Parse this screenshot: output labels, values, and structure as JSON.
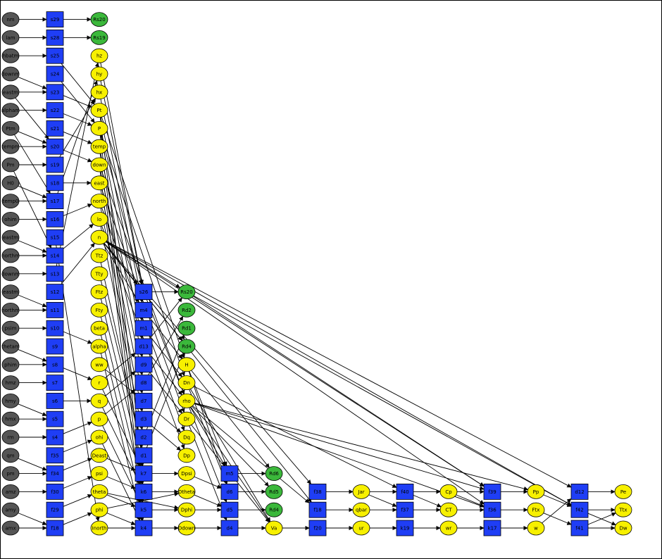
{
  "colors": {
    "input": "#555555",
    "state": "#1f3ef5",
    "green": "#3bb83b",
    "yellow": "#f7f000",
    "edge": "#000000"
  },
  "columns": [
    {
      "kind": "input",
      "labels": [
        "nm",
        "lam",
        "hbatm",
        "downm",
        "eastm",
        "alpham",
        "Ptm",
        "tempm",
        "Pm",
        "H0",
        "temp0",
        "ohim",
        "eastm",
        "northm",
        "downm",
        "eastm",
        "northm",
        "psim",
        "thetam",
        "phim",
        "hmz",
        "hmy",
        "hmx",
        "rm",
        "qm",
        "pm",
        "amz",
        "amy",
        "amx"
      ]
    },
    {
      "kind": "state",
      "labels": [
        "s29",
        "s28",
        "s25",
        "s24",
        "s23",
        "s22",
        "s21",
        "s20",
        "s19",
        "s18",
        "s17",
        "s16",
        "s15",
        "s14",
        "s13",
        "s12",
        "s11",
        "s10",
        "s9",
        "s8",
        "s7",
        "s6",
        "s5",
        "s4",
        "f35",
        "f34",
        "f30",
        "f29",
        "f18"
      ]
    },
    {
      "kind": "mixed",
      "labels": [
        "Rs20",
        "Rs19",
        "hz",
        "hy",
        "hx",
        "Pt",
        "P",
        "temp",
        "down",
        "east",
        "north",
        "lo",
        "n",
        "Ttz",
        "Tty",
        "Ftz",
        "Fty",
        "beta",
        "alpha",
        "ww",
        "r",
        "q",
        "p",
        "ohi",
        "Deast",
        "psi",
        "theta",
        "phi",
        "Inorth"
      ],
      "greens": [
        "Rs20",
        "Rs19"
      ]
    },
    {
      "kind": "state",
      "labels": [
        "s26",
        "m4",
        "m1",
        "d13",
        "d9",
        "d8",
        "d7",
        "d3",
        "d2",
        "d1",
        "k7",
        "k6",
        "k5",
        "k4"
      ]
    },
    {
      "kind": "mixed",
      "labels": [
        "Rs20",
        "Rd2",
        "Rd1",
        "Rd4",
        "H",
        "Dn",
        "rho",
        "Dr",
        "Dq",
        "Dp",
        "Dpsi",
        "Dtheta",
        "Dphi",
        "Ddown"
      ],
      "greens": [
        "Rs20",
        "Rd2",
        "Rd1",
        "Rd4"
      ]
    },
    {
      "kind": "state",
      "labels": [
        "m5",
        "d6",
        "d5",
        "d4"
      ]
    },
    {
      "kind": "mixed",
      "labels": [
        "Rd6",
        "Rd5",
        "Rd4",
        "Va"
      ],
      "greens": [
        "Rd6",
        "Rd5",
        "Rd4"
      ]
    },
    {
      "kind": "state",
      "labels": [
        "f38",
        "f18",
        "f20"
      ]
    },
    {
      "kind": "mixed",
      "labels": [
        "Jar",
        "qbar",
        "ur"
      ]
    },
    {
      "kind": "state",
      "labels": [
        "f40",
        "f37",
        "k19"
      ]
    },
    {
      "kind": "mixed",
      "labels": [
        "Cp",
        "CT",
        "wr"
      ]
    },
    {
      "kind": "state",
      "labels": [
        "f39",
        "f36",
        "k17"
      ]
    },
    {
      "kind": "mixed",
      "labels": [
        "Pp",
        "Ftx",
        "w"
      ]
    },
    {
      "kind": "state",
      "labels": [
        "d12",
        "f42",
        "f41"
      ]
    },
    {
      "kind": "mixed",
      "labels": [
        "Pe",
        "Ttx",
        "Dw"
      ]
    }
  ]
}
